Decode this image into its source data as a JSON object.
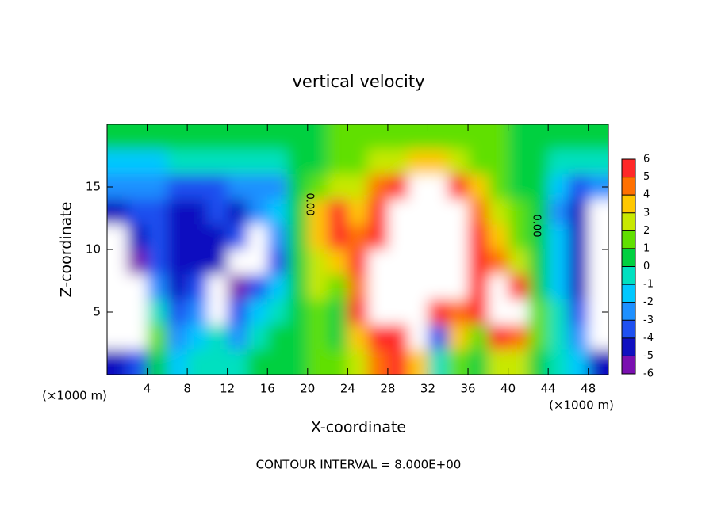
{
  "chart_data": {
    "type": "heatmap",
    "title": "vertical velocity",
    "x_label": "X-coordinate",
    "y_label": "Z-coordinate",
    "x_unit_left": "(×1000 m)",
    "x_unit_right": "(×1000 m)",
    "footer": "CONTOUR INTERVAL = 8.000E+00",
    "contour_labels": [
      "0.00",
      "0.00"
    ],
    "xlim": [
      0,
      50
    ],
    "ylim": [
      0,
      20
    ],
    "xticks": [
      4,
      8,
      12,
      16,
      20,
      24,
      28,
      32,
      36,
      40,
      44,
      48
    ],
    "yticks": [
      5,
      10,
      15
    ],
    "x": [
      1,
      3,
      5,
      7,
      9,
      11,
      13,
      15,
      17,
      19,
      21,
      23,
      25,
      27,
      29,
      31,
      33,
      35,
      37,
      39,
      41,
      43,
      45,
      47,
      49
    ],
    "y": [
      19,
      17,
      15,
      13,
      11,
      9,
      7,
      5,
      3,
      1
    ],
    "z": [
      [
        0,
        0,
        0,
        0,
        0,
        0,
        0,
        0,
        0,
        0,
        0,
        1,
        1,
        1,
        1,
        1,
        1,
        1,
        1,
        1,
        0,
        0,
        0,
        0,
        0
      ],
      [
        -2,
        -2,
        -2,
        -1,
        -1,
        -1,
        -1,
        -1,
        -1,
        0,
        0,
        1,
        1,
        2,
        2,
        3,
        3,
        2,
        1,
        1,
        0,
        0,
        -1,
        -1,
        -1
      ],
      [
        -3,
        -3,
        -3,
        -4,
        -4,
        -4,
        -3,
        -3,
        -3,
        0,
        1,
        2,
        2,
        4,
        5,
        7,
        7,
        6,
        3,
        1,
        0,
        0,
        -2,
        -4,
        -3
      ],
      [
        -5,
        -4,
        -4,
        -5,
        -5,
        -4,
        -5,
        -3,
        -2,
        0,
        3,
        5,
        3,
        5,
        7,
        8,
        8,
        7,
        4,
        2,
        1,
        0,
        -3,
        -5,
        -7
      ],
      [
        -7,
        -5,
        -4,
        -5,
        -5,
        -5,
        -4,
        -7,
        -3,
        0,
        3,
        6,
        4,
        6,
        8,
        8,
        8,
        7,
        5,
        3,
        1,
        0,
        -2,
        -5,
        -7
      ],
      [
        -7,
        -6,
        -4,
        -5,
        -5,
        -5,
        -7,
        -7,
        -4,
        0,
        2,
        3,
        5,
        7,
        8,
        8,
        8,
        8,
        5,
        4,
        2,
        0,
        -2,
        -5,
        -7
      ],
      [
        -7,
        -7,
        -3,
        -5,
        -4,
        -7,
        -6,
        -4,
        -2,
        0,
        2,
        1,
        4,
        7,
        8,
        8,
        8,
        7,
        5,
        7,
        6,
        0,
        -2,
        -5,
        -7
      ],
      [
        -7,
        -7,
        -1,
        -4,
        -3,
        -7,
        -4,
        -2,
        -1,
        0,
        1,
        0,
        5,
        7,
        8,
        8,
        6,
        4,
        5,
        7,
        7,
        1,
        -1,
        -4,
        -7
      ],
      [
        -7,
        -7,
        1,
        -3,
        -2,
        -1,
        -3,
        -1,
        0,
        0,
        1,
        0,
        3,
        6,
        6,
        7,
        -4,
        3,
        1,
        5,
        4,
        1,
        -1,
        -3,
        -7
      ],
      [
        -5,
        -4,
        0,
        -2,
        -1,
        -1,
        -1,
        0,
        0,
        0,
        1,
        1,
        2,
        4,
        5,
        3,
        -1,
        1,
        0,
        2,
        2,
        0,
        -1,
        -2,
        -5
      ]
    ],
    "colorbar": {
      "ticks": [
        -6,
        -5,
        -4,
        -3,
        -2,
        -1,
        0,
        1,
        2,
        3,
        4,
        5,
        6
      ],
      "colors": [
        "#7a10b0",
        "#1010c0",
        "#1e50f0",
        "#1e90ff",
        "#00c8ff",
        "#00e0c0",
        "#00d040",
        "#60e000",
        "#c8e800",
        "#ffc800",
        "#ff7000",
        "#ff2828"
      ],
      "out_of_range": "#ffffff"
    }
  }
}
